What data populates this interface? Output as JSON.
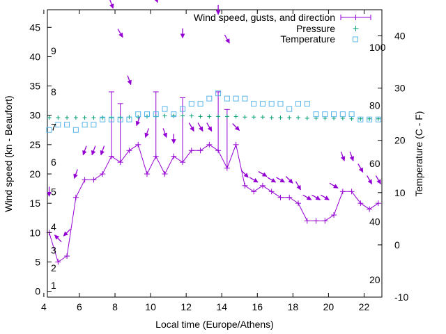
{
  "chart_data": {
    "type": "line",
    "title": "",
    "xlabel": "Local time (Europe/Athens)",
    "ylabel": "Wind speed (kn - Beaufort)",
    "y2label": "Temperature (C - F)",
    "xlim": [
      4.2,
      23
    ],
    "ylim": [
      -1,
      48
    ],
    "y2lim": [
      -10,
      45
    ],
    "grid": false,
    "legend": "top-right",
    "x_ticks": [
      "4",
      "6",
      "8",
      "10",
      "12",
      "14",
      "16",
      "18",
      "20",
      "22"
    ],
    "y_ticks": [
      "0",
      "5",
      "10",
      "15",
      "20",
      "25",
      "30",
      "35",
      "40",
      "45"
    ],
    "y2_ticks": [
      "-10",
      "0",
      "10",
      "20",
      "30",
      "40"
    ],
    "beaufort_labels": [
      "1",
      "2",
      "3",
      "4",
      "5",
      "6",
      "7",
      "8",
      "9"
    ],
    "fahrenheit_labels": [
      "20",
      "40",
      "60",
      "80",
      "100"
    ],
    "colors": {
      "wind": "#9400d3",
      "pressure": "#009e73",
      "temperature": "#56b4e9"
    },
    "series": [
      {
        "name": "Wind speed, gusts, and direction",
        "x": [
          4.3,
          4.8,
          5.3,
          5.8,
          6.3,
          6.8,
          7.3,
          7.8,
          8.3,
          8.8,
          9.3,
          9.8,
          10.3,
          10.8,
          11.3,
          11.8,
          12.3,
          12.8,
          13.3,
          13.8,
          14.3,
          14.8,
          15.3,
          15.8,
          16.3,
          16.8,
          17.3,
          17.8,
          18.3,
          18.8,
          19.3,
          19.8,
          20.3,
          20.8,
          21.3,
          21.8,
          22.3,
          22.8
        ],
        "values": [
          10,
          5,
          6,
          16,
          19,
          19,
          20,
          23,
          22,
          24,
          25,
          20,
          23,
          20,
          23,
          22,
          24,
          24,
          25,
          24,
          21,
          25,
          18,
          17,
          18,
          17,
          16,
          16,
          15,
          12,
          12,
          12,
          13,
          17,
          17,
          15,
          14,
          15
        ],
        "gusts": [
          null,
          null,
          null,
          null,
          null,
          null,
          null,
          34,
          32,
          null,
          null,
          null,
          34,
          null,
          null,
          33,
          null,
          null,
          null,
          34,
          31,
          null,
          null,
          null,
          null,
          null,
          null,
          null,
          null,
          null,
          null,
          null,
          null,
          null,
          null,
          null,
          null,
          null
        ],
        "direction_deg": [
          0,
          135,
          45,
          20,
          20,
          20,
          20,
          340,
          330,
          340,
          20,
          20,
          340,
          340,
          0,
          0,
          330,
          330,
          330,
          0,
          330,
          315,
          315,
          300,
          300,
          300,
          300,
          315,
          330,
          300,
          300,
          300,
          300,
          340,
          340,
          330,
          330,
          330
        ],
        "arrow_offset": [
          7,
          4,
          4,
          4,
          5,
          5,
          4,
          15,
          12,
          12,
          4,
          7,
          16,
          7,
          3,
          11,
          4,
          4,
          3,
          14,
          12,
          3,
          2,
          2,
          2,
          2,
          3,
          3,
          3,
          4,
          4,
          4,
          5,
          6,
          6,
          6,
          5,
          4
        ]
      },
      {
        "name": "Pressure",
        "x": [
          4.3,
          4.8,
          5.3,
          5.8,
          6.3,
          6.8,
          7.3,
          7.8,
          8.3,
          8.8,
          9.3,
          9.8,
          10.3,
          10.8,
          11.3,
          11.8,
          12.3,
          12.8,
          13.3,
          13.8,
          14.3,
          14.8,
          15.3,
          15.8,
          16.3,
          16.8,
          17.3,
          17.8,
          18.3,
          18.8,
          19.3,
          19.8,
          20.3,
          20.8,
          21.3,
          21.8,
          22.3,
          22.8
        ],
        "values": [
          29.6,
          29.6,
          29.6,
          29.6,
          29.6,
          29.6,
          29.6,
          29.6,
          29.6,
          29.7,
          29.7,
          29.8,
          29.8,
          29.9,
          29.9,
          29.9,
          29.9,
          29.8,
          29.8,
          29.8,
          29.8,
          29.8,
          29.7,
          29.7,
          29.7,
          29.6,
          29.6,
          29.6,
          29.6,
          29.5,
          29.5,
          29.5,
          29.5,
          29.5,
          29.4,
          29.4,
          29.4,
          29.4
        ]
      },
      {
        "name": "Temperature",
        "x": [
          4.3,
          4.8,
          5.3,
          5.8,
          6.3,
          6.8,
          7.3,
          7.8,
          8.3,
          8.8,
          9.3,
          9.8,
          10.3,
          10.8,
          11.3,
          11.8,
          12.3,
          12.8,
          13.3,
          13.8,
          14.3,
          14.8,
          15.3,
          15.8,
          16.3,
          16.8,
          17.3,
          17.8,
          18.3,
          18.8,
          19.3,
          19.8,
          20.3,
          20.8,
          21.3,
          21.8,
          22.3,
          22.8
        ],
        "values": [
          22,
          23,
          23,
          22,
          23,
          23,
          24,
          24,
          24,
          24,
          25,
          25,
          25,
          26,
          25,
          26,
          27,
          27,
          28,
          29,
          28,
          28,
          28,
          27,
          27,
          27,
          27,
          26,
          27,
          27,
          25,
          25,
          25,
          25,
          25,
          24,
          24,
          24
        ]
      }
    ]
  }
}
